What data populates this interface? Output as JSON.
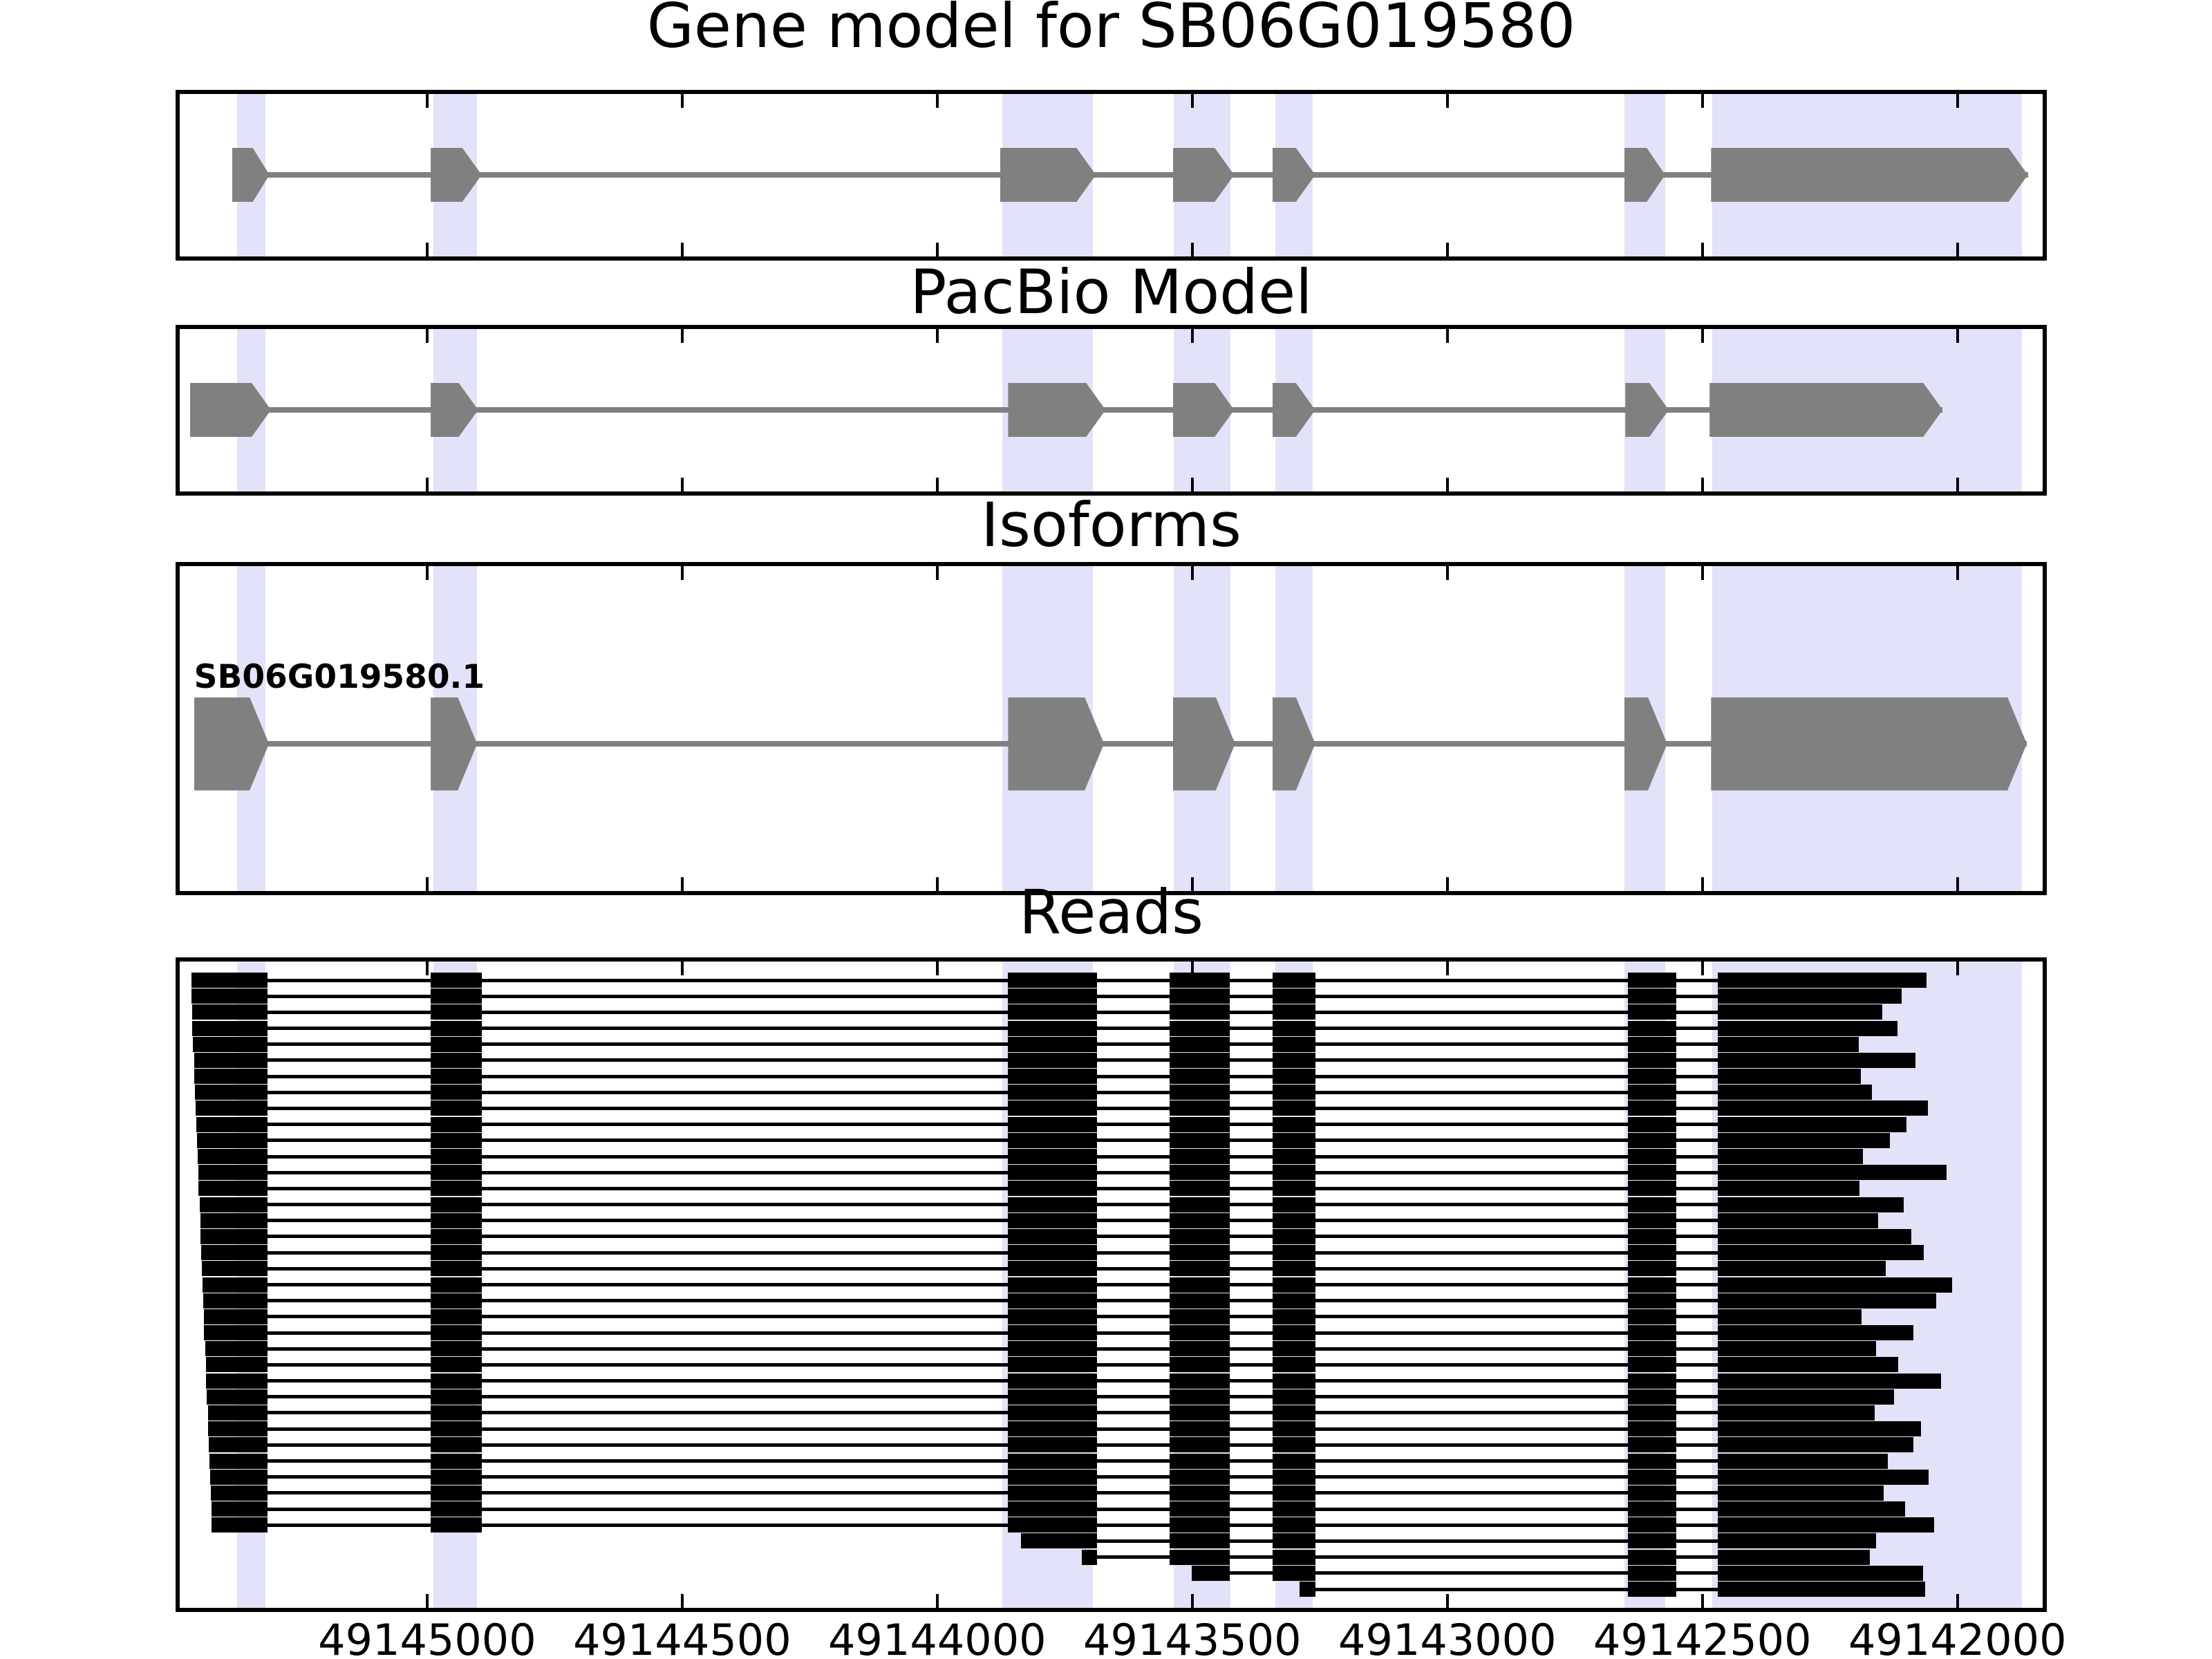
{
  "figure": {
    "titles": {
      "gene_model": "Gene model for SB06G019580",
      "pacbio": "PacBio Model",
      "isoforms": "Isoforms",
      "reads": "Reads"
    },
    "isoform_label": "SB06G019580.1",
    "colors": {
      "exon_gray": "#808080",
      "intron_gray": "#808080",
      "read_black": "#000000",
      "highlight_band": "#e2e2f8",
      "panel_border": "#000000",
      "background": "#ffffff",
      "text": "#000000"
    }
  },
  "chart_data": {
    "type": "gene-model-tracks",
    "title": "Gene model for SB06G019580",
    "x_axis": {
      "unit": "genomic position (bp)",
      "reversed": true,
      "left_edge_coord": 49145485,
      "right_edge_coord": 49141833,
      "ticks": [
        49145000,
        49144500,
        49144000,
        49143500,
        49143000,
        49142500,
        49142000
      ],
      "tick_labels": [
        "49145000",
        "49144500",
        "49144000",
        "49143500",
        "49143000",
        "49142500",
        "49142000"
      ]
    },
    "highlight_regions": [
      [
        49145373,
        49145317
      ],
      [
        49144988,
        49144902
      ],
      [
        49143872,
        49143695
      ],
      [
        49143536,
        49143425
      ],
      [
        49143337,
        49143264
      ],
      [
        49142653,
        49142573
      ],
      [
        49142481,
        49141874
      ]
    ],
    "tracks": [
      {
        "name": "Gene model for SB06G019580",
        "exons": [
          [
            49145382,
            49145309
          ],
          [
            49144993,
            49144893
          ],
          [
            49143877,
            49143689
          ],
          [
            49143538,
            49143418
          ],
          [
            49143343,
            49143259
          ],
          [
            49142653,
            49142573
          ],
          [
            49142483,
            49141862
          ]
        ]
      },
      {
        "name": "PacBio Model",
        "exons": [
          [
            49145465,
            49145306
          ],
          [
            49144993,
            49144900
          ],
          [
            49143861,
            49143670
          ],
          [
            49143538,
            49143418
          ],
          [
            49143343,
            49143259
          ],
          [
            49142651,
            49142566
          ],
          [
            49142486,
            49142029
          ]
        ]
      },
      {
        "name": "Isoforms",
        "isoform_id": "SB06G019580.1",
        "exons": [
          [
            49145457,
            49145310
          ],
          [
            49144993,
            49144902
          ],
          [
            49143861,
            49143673
          ],
          [
            49143538,
            49143416
          ],
          [
            49143343,
            49143259
          ],
          [
            49142653,
            49142569
          ],
          [
            49142483,
            49141864
          ]
        ]
      }
    ],
    "reads": {
      "count": 39,
      "exon_blocks": [
        [
          49145485,
          49145313
        ],
        [
          49144993,
          49144893
        ],
        [
          49143861,
          49143687
        ],
        [
          49143544,
          49143427
        ],
        [
          49143343,
          49143259
        ],
        [
          49142646,
          49142551
        ],
        [
          49142470,
          49141833
        ]
      ],
      "items": [
        [
          49145462,
          49142060
        ],
        [
          49145462,
          49142110
        ],
        [
          49145461,
          49142148
        ],
        [
          49145460,
          49142118
        ],
        [
          49145459,
          49142194
        ],
        [
          49145457,
          49142082
        ],
        [
          49145456,
          49142190
        ],
        [
          49145455,
          49142168
        ],
        [
          49145454,
          49142058
        ],
        [
          49145452,
          49142100
        ],
        [
          49145451,
          49142132
        ],
        [
          49145450,
          49142186
        ],
        [
          49145449,
          49142022
        ],
        [
          49145448,
          49142192
        ],
        [
          49145446,
          49142106
        ],
        [
          49145445,
          49142156
        ],
        [
          49145444,
          49142090
        ],
        [
          49145443,
          49142066
        ],
        [
          49145441,
          49142140
        ],
        [
          49145440,
          49142010
        ],
        [
          49145439,
          49142042
        ],
        [
          49145438,
          49142188
        ],
        [
          49145437,
          49142086
        ],
        [
          49145435,
          49142160
        ],
        [
          49145434,
          49142116
        ],
        [
          49145433,
          49142032
        ],
        [
          49145432,
          49142125
        ],
        [
          49145430,
          49142162
        ],
        [
          49145429,
          49142072
        ],
        [
          49145428,
          49142086
        ],
        [
          49145427,
          49142136
        ],
        [
          49145426,
          49142056
        ],
        [
          49145424,
          49142145
        ],
        [
          49145423,
          49142102
        ],
        [
          49145422,
          49142046
        ],
        [
          49143836,
          49142160
        ],
        [
          49143717,
          49142172
        ],
        [
          49143501,
          49142068
        ],
        [
          49143290,
          49142064
        ]
      ]
    }
  }
}
